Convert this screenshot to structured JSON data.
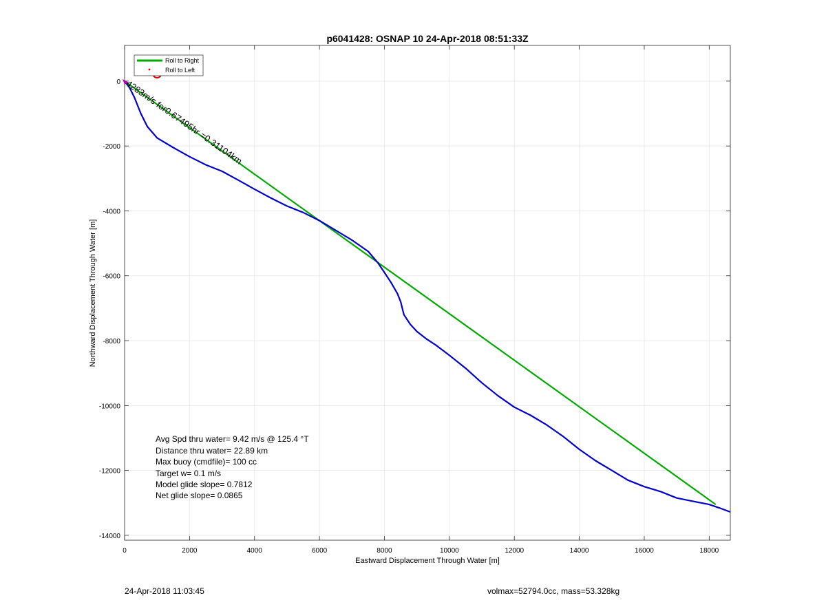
{
  "chart_data": {
    "type": "line",
    "title": "p6041428: OSNAP 10 24-Apr-2018 08:51:33Z",
    "xlabel": "Eastward Displacement Through Water [m]",
    "ylabel": "Northward Displacement Through Water [m]",
    "xlim": [
      0,
      18650
    ],
    "ylim": [
      -14150,
      1100
    ],
    "xticks": [
      0,
      2000,
      4000,
      6000,
      8000,
      10000,
      12000,
      14000,
      16000,
      18000
    ],
    "yticks": [
      0,
      -2000,
      -4000,
      -6000,
      -8000,
      -10000,
      -12000,
      -14000
    ],
    "xtick_labels": [
      "0",
      "2000",
      "4000",
      "6000",
      "8000",
      "10000",
      "12000",
      "14000",
      "16000",
      "18000"
    ],
    "ytick_labels": [
      "0",
      "-2000",
      "-4000",
      "-6000",
      "-8000",
      "-10000",
      "-12000",
      "-14000"
    ],
    "grid": true,
    "legend": {
      "placement": "top-left",
      "entries": [
        {
          "label": "Roll to Right",
          "color": "#00aa00",
          "marker": "line"
        },
        {
          "label": "Roll to Left",
          "color": "#e00000",
          "marker": "dot"
        }
      ]
    },
    "series": [
      {
        "name": "Roll to Right",
        "color": "#00aa00",
        "x": [
          0,
          18200
        ],
        "y": [
          0,
          -13050
        ]
      },
      {
        "color": "#0000cc",
        "x": [
          0,
          150,
          300,
          500,
          700,
          1000,
          1500,
          2000,
          2500,
          3000,
          3500,
          4000,
          4500,
          5000,
          5500,
          6000,
          6500,
          7000,
          7500,
          7800,
          8000,
          8200,
          8400,
          8500,
          8600,
          8800,
          9000,
          9300,
          9600,
          10000,
          10500,
          11000,
          11500,
          12000,
          12500,
          13000,
          13500,
          14000,
          14500,
          15000,
          15500,
          16000,
          16500,
          17000,
          17500,
          18000,
          18300,
          18650
        ],
        "y": [
          0,
          -200,
          -500,
          -1000,
          -1400,
          -1750,
          -2050,
          -2330,
          -2580,
          -2780,
          -3050,
          -3330,
          -3600,
          -3850,
          -4050,
          -4300,
          -4600,
          -4900,
          -5250,
          -5600,
          -5900,
          -6200,
          -6550,
          -6800,
          -7200,
          -7500,
          -7720,
          -7950,
          -8150,
          -8450,
          -8850,
          -9300,
          -9700,
          -10050,
          -10300,
          -10600,
          -10950,
          -11350,
          -11700,
          -12000,
          -12300,
          -12500,
          -12650,
          -12850,
          -12950,
          -13050,
          -13150,
          -13280
        ]
      }
    ],
    "annotations": [
      {
        "text": "4283m/s for0.67495hr =0.31104km",
        "x": 30,
        "y": -120,
        "rotation_deg": 35
      },
      {
        "text": "dive-marker-circle",
        "x": 1000,
        "y": 230,
        "color": "#e00000"
      }
    ]
  },
  "stats": [
    "Avg Spd thru water=  9.42 m/s @ 125.4 °T",
    "Distance thru water= 22.89 km",
    "Max buoy (cmdfile)= 100 cc",
    "Target w= 0.1 m/s",
    "Model glide slope= 0.7812",
    "Net glide slope= 0.0865"
  ],
  "footer": {
    "left": "24-Apr-2018 11:03:45",
    "right": "volmax=52794.0cc, mass=53.328kg"
  }
}
